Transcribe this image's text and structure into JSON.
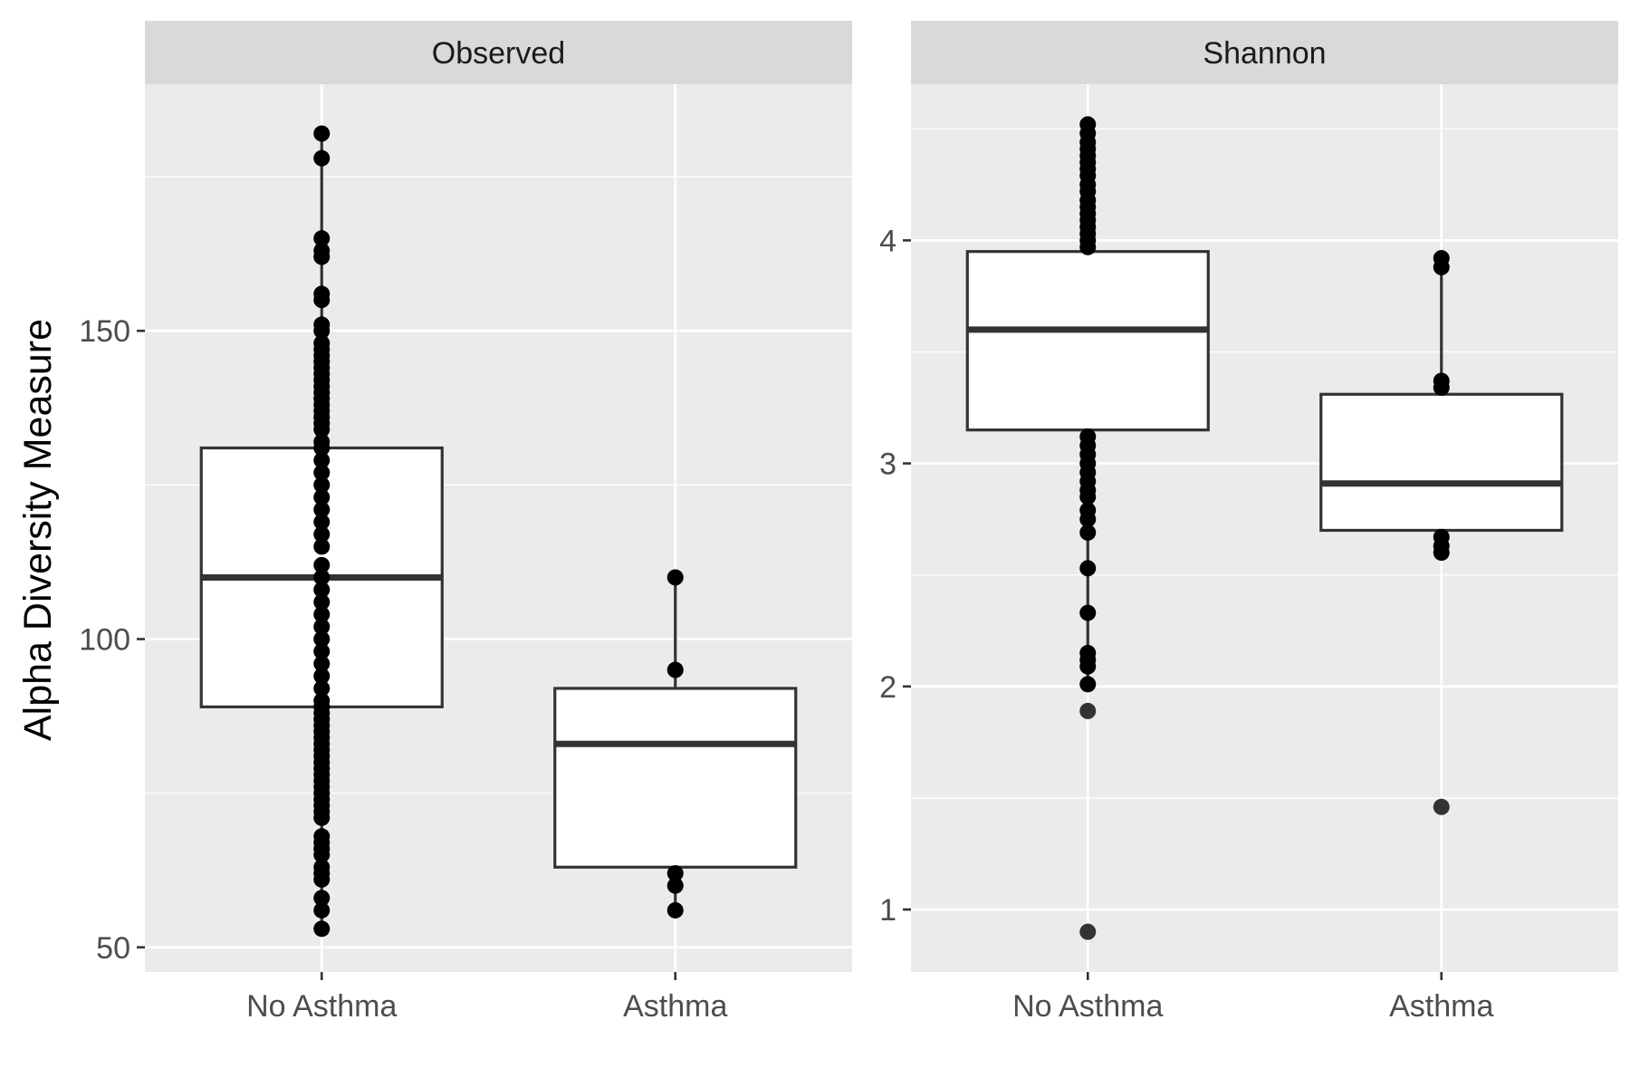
{
  "chart_data": [
    {
      "type": "box",
      "facet": "Observed",
      "ylabel": "Alpha Diversity Measure",
      "categories": [
        "No Asthma",
        "Asthma"
      ],
      "ylim": [
        46,
        190
      ],
      "yticks": [
        50,
        100,
        150
      ],
      "yticks_minor": [
        75,
        125,
        175
      ],
      "grid": true,
      "boxes": [
        {
          "category": "No Asthma",
          "q1": 89,
          "median": 110,
          "q3": 131,
          "whisker_low": 53,
          "whisker_high": 182,
          "points": [
            182,
            178,
            165,
            163,
            162,
            156,
            155,
            151,
            150,
            148,
            147,
            146,
            145,
            144,
            143,
            142,
            141,
            140,
            139,
            138,
            137,
            136,
            135,
            134,
            132,
            131,
            129,
            127,
            125,
            123,
            121,
            119,
            117,
            115,
            112,
            110,
            108,
            106,
            104,
            102,
            100,
            98,
            96,
            94,
            92,
            90,
            89,
            88,
            87,
            86,
            85,
            84,
            83,
            82,
            81,
            80,
            79,
            78,
            77,
            76,
            75,
            74,
            73,
            72,
            71,
            68,
            67,
            66,
            65,
            63,
            62,
            61,
            58,
            56,
            53
          ]
        },
        {
          "category": "Asthma",
          "q1": 63,
          "median": 83,
          "q3": 92,
          "whisker_low": 56,
          "whisker_high": 110,
          "points": [
            110,
            95,
            62,
            60,
            56
          ]
        }
      ]
    },
    {
      "type": "box",
      "facet": "Shannon",
      "categories": [
        "No Asthma",
        "Asthma"
      ],
      "ylim": [
        0.72,
        4.7
      ],
      "yticks": [
        1,
        2,
        3,
        4
      ],
      "yticks_minor": [
        1.5,
        2.5,
        3.5,
        4.5
      ],
      "grid": true,
      "boxes": [
        {
          "category": "No Asthma",
          "q1": 3.15,
          "median": 3.6,
          "q3": 3.95,
          "whisker_low": 2.0,
          "whisker_high": 4.52,
          "points": [
            4.52,
            4.48,
            4.44,
            4.41,
            4.38,
            4.35,
            4.32,
            4.29,
            4.25,
            4.22,
            4.18,
            4.15,
            4.12,
            4.09,
            4.06,
            4.03,
            4.0,
            3.97,
            3.12,
            3.08,
            3.04,
            3.0,
            2.96,
            2.92,
            2.88,
            2.85,
            2.79,
            2.75,
            2.69,
            2.53,
            2.33,
            2.15,
            2.12,
            2.09,
            2.01
          ],
          "outliers": [
            1.89,
            0.9
          ]
        },
        {
          "category": "Asthma",
          "q1": 2.7,
          "median": 2.91,
          "q3": 3.31,
          "whisker_low": 2.6,
          "whisker_high": 3.92,
          "points": [
            3.92,
            3.88,
            3.37,
            3.34,
            2.67,
            2.63,
            2.6
          ],
          "outliers": [
            1.46
          ]
        }
      ]
    }
  ]
}
